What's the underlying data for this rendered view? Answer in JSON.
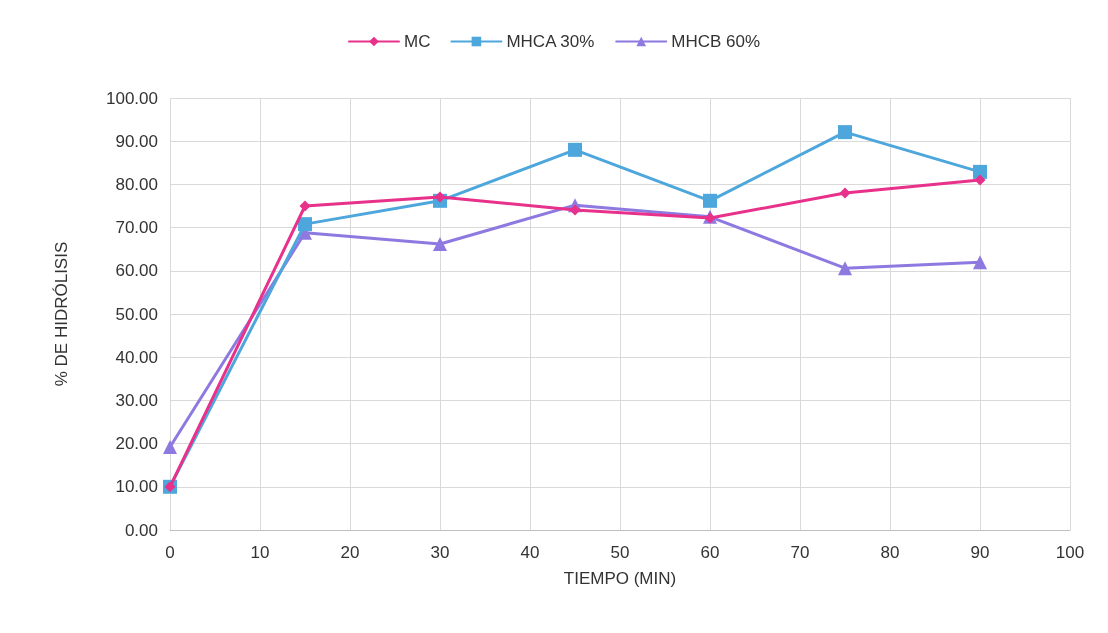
{
  "chart_data": {
    "type": "line",
    "xlabel": "TIEMPO (MIN)",
    "ylabel": "% DE HIDRÓLISIS",
    "x": [
      0,
      15,
      30,
      45,
      60,
      75,
      90
    ],
    "series": [
      {
        "name": "MC",
        "color": "#e8318a",
        "marker": "diamond",
        "values": [
          10.0,
          75.0,
          77.1,
          74.1,
          72.2,
          78.0,
          81.0
        ]
      },
      {
        "name": "MHCA 30%",
        "color": "#4ea7dc",
        "marker": "square",
        "values": [
          10.0,
          70.8,
          76.2,
          88.0,
          76.2,
          92.1,
          82.9
        ]
      },
      {
        "name": "MHCB 60%",
        "color": "#8e79e0",
        "marker": "triangle",
        "values": [
          19.2,
          68.8,
          66.2,
          75.2,
          72.5,
          60.6,
          62.0
        ]
      }
    ],
    "xlim": [
      0,
      100
    ],
    "xticks": [
      0,
      10,
      20,
      30,
      40,
      50,
      60,
      70,
      80,
      90,
      100
    ],
    "ylim": [
      0,
      100
    ],
    "yticks": [
      {
        "value": 0,
        "label": "0.00"
      },
      {
        "value": 10,
        "label": "10.00"
      },
      {
        "value": 20,
        "label": "20.00"
      },
      {
        "value": 30,
        "label": "30.00"
      },
      {
        "value": 40,
        "label": "40.00"
      },
      {
        "value": 50,
        "label": "50.00"
      },
      {
        "value": 60,
        "label": "60.00"
      },
      {
        "value": 70,
        "label": "70.00"
      },
      {
        "value": 80,
        "label": "80.00"
      },
      {
        "value": 90,
        "label": "90.00"
      },
      {
        "value": 100,
        "label": "100.00"
      }
    ],
    "grid": true,
    "legend": "top",
    "line_style": "solid"
  }
}
